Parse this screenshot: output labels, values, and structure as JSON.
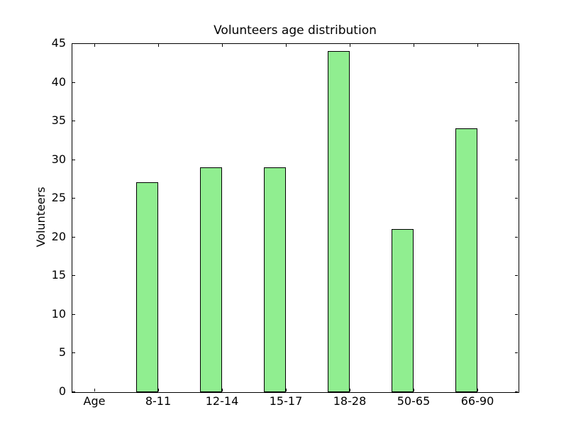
{
  "figure": {
    "background_color": "#ffffff",
    "axis_color": "#000000"
  },
  "chart_data": {
    "type": "bar",
    "title": "Volunteers age distribution",
    "ylabel": "Volunteers",
    "categories": [
      "Age",
      "8-11",
      "12-14",
      "15-17",
      "18-28",
      "50-65",
      "66-90"
    ],
    "values": [
      0,
      27,
      29,
      29,
      44,
      21,
      34
    ],
    "ylim": [
      0,
      45
    ],
    "yticks": [
      0,
      5,
      10,
      15,
      20,
      25,
      30,
      35,
      40,
      45
    ],
    "bar_color": "#90ee90",
    "bar_edge_color": "#000000",
    "grid": false,
    "legend_position": "none"
  }
}
